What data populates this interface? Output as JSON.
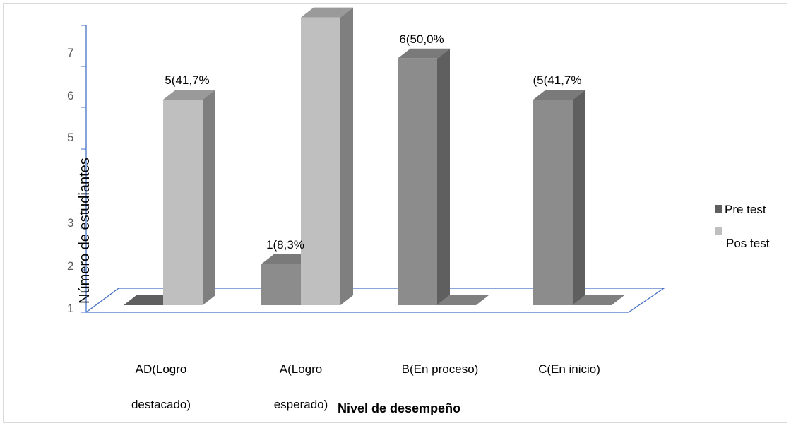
{
  "chart_data": {
    "type": "bar",
    "title": "",
    "xlabel": "Nivel de desempeño",
    "ylabel": "Número de estudiantes",
    "y_ticks": [
      "1",
      "2",
      "3",
      "5",
      "6",
      "7"
    ],
    "ylim": [
      0,
      7
    ],
    "categories": [
      [
        "AD(Logro",
        "destacado)"
      ],
      [
        "A(Logro",
        "esperado)"
      ],
      [
        "B(En proceso)"
      ],
      [
        "C(En inicio)"
      ]
    ],
    "series": [
      {
        "name": "Pre test",
        "values": [
          0,
          1,
          6,
          5
        ],
        "labels": [
          "",
          "1(8,3%",
          "6(50,0%",
          "(5(41,7%"
        ]
      },
      {
        "name": "Pos test",
        "values": [
          5,
          7,
          0,
          0
        ],
        "labels": [
          "5(41,7%",
          "",
          "",
          ""
        ]
      }
    ],
    "legend_position": "right",
    "colors": {
      "pre_front": "#8c8c8c",
      "pre_side": "#5f5f5f",
      "pre_top": "#7a7a7a",
      "pos_front": "#bfbfbf",
      "pos_side": "#7f7f7f",
      "pos_top": "#9a9a9a",
      "axis": "#4472c4"
    }
  }
}
